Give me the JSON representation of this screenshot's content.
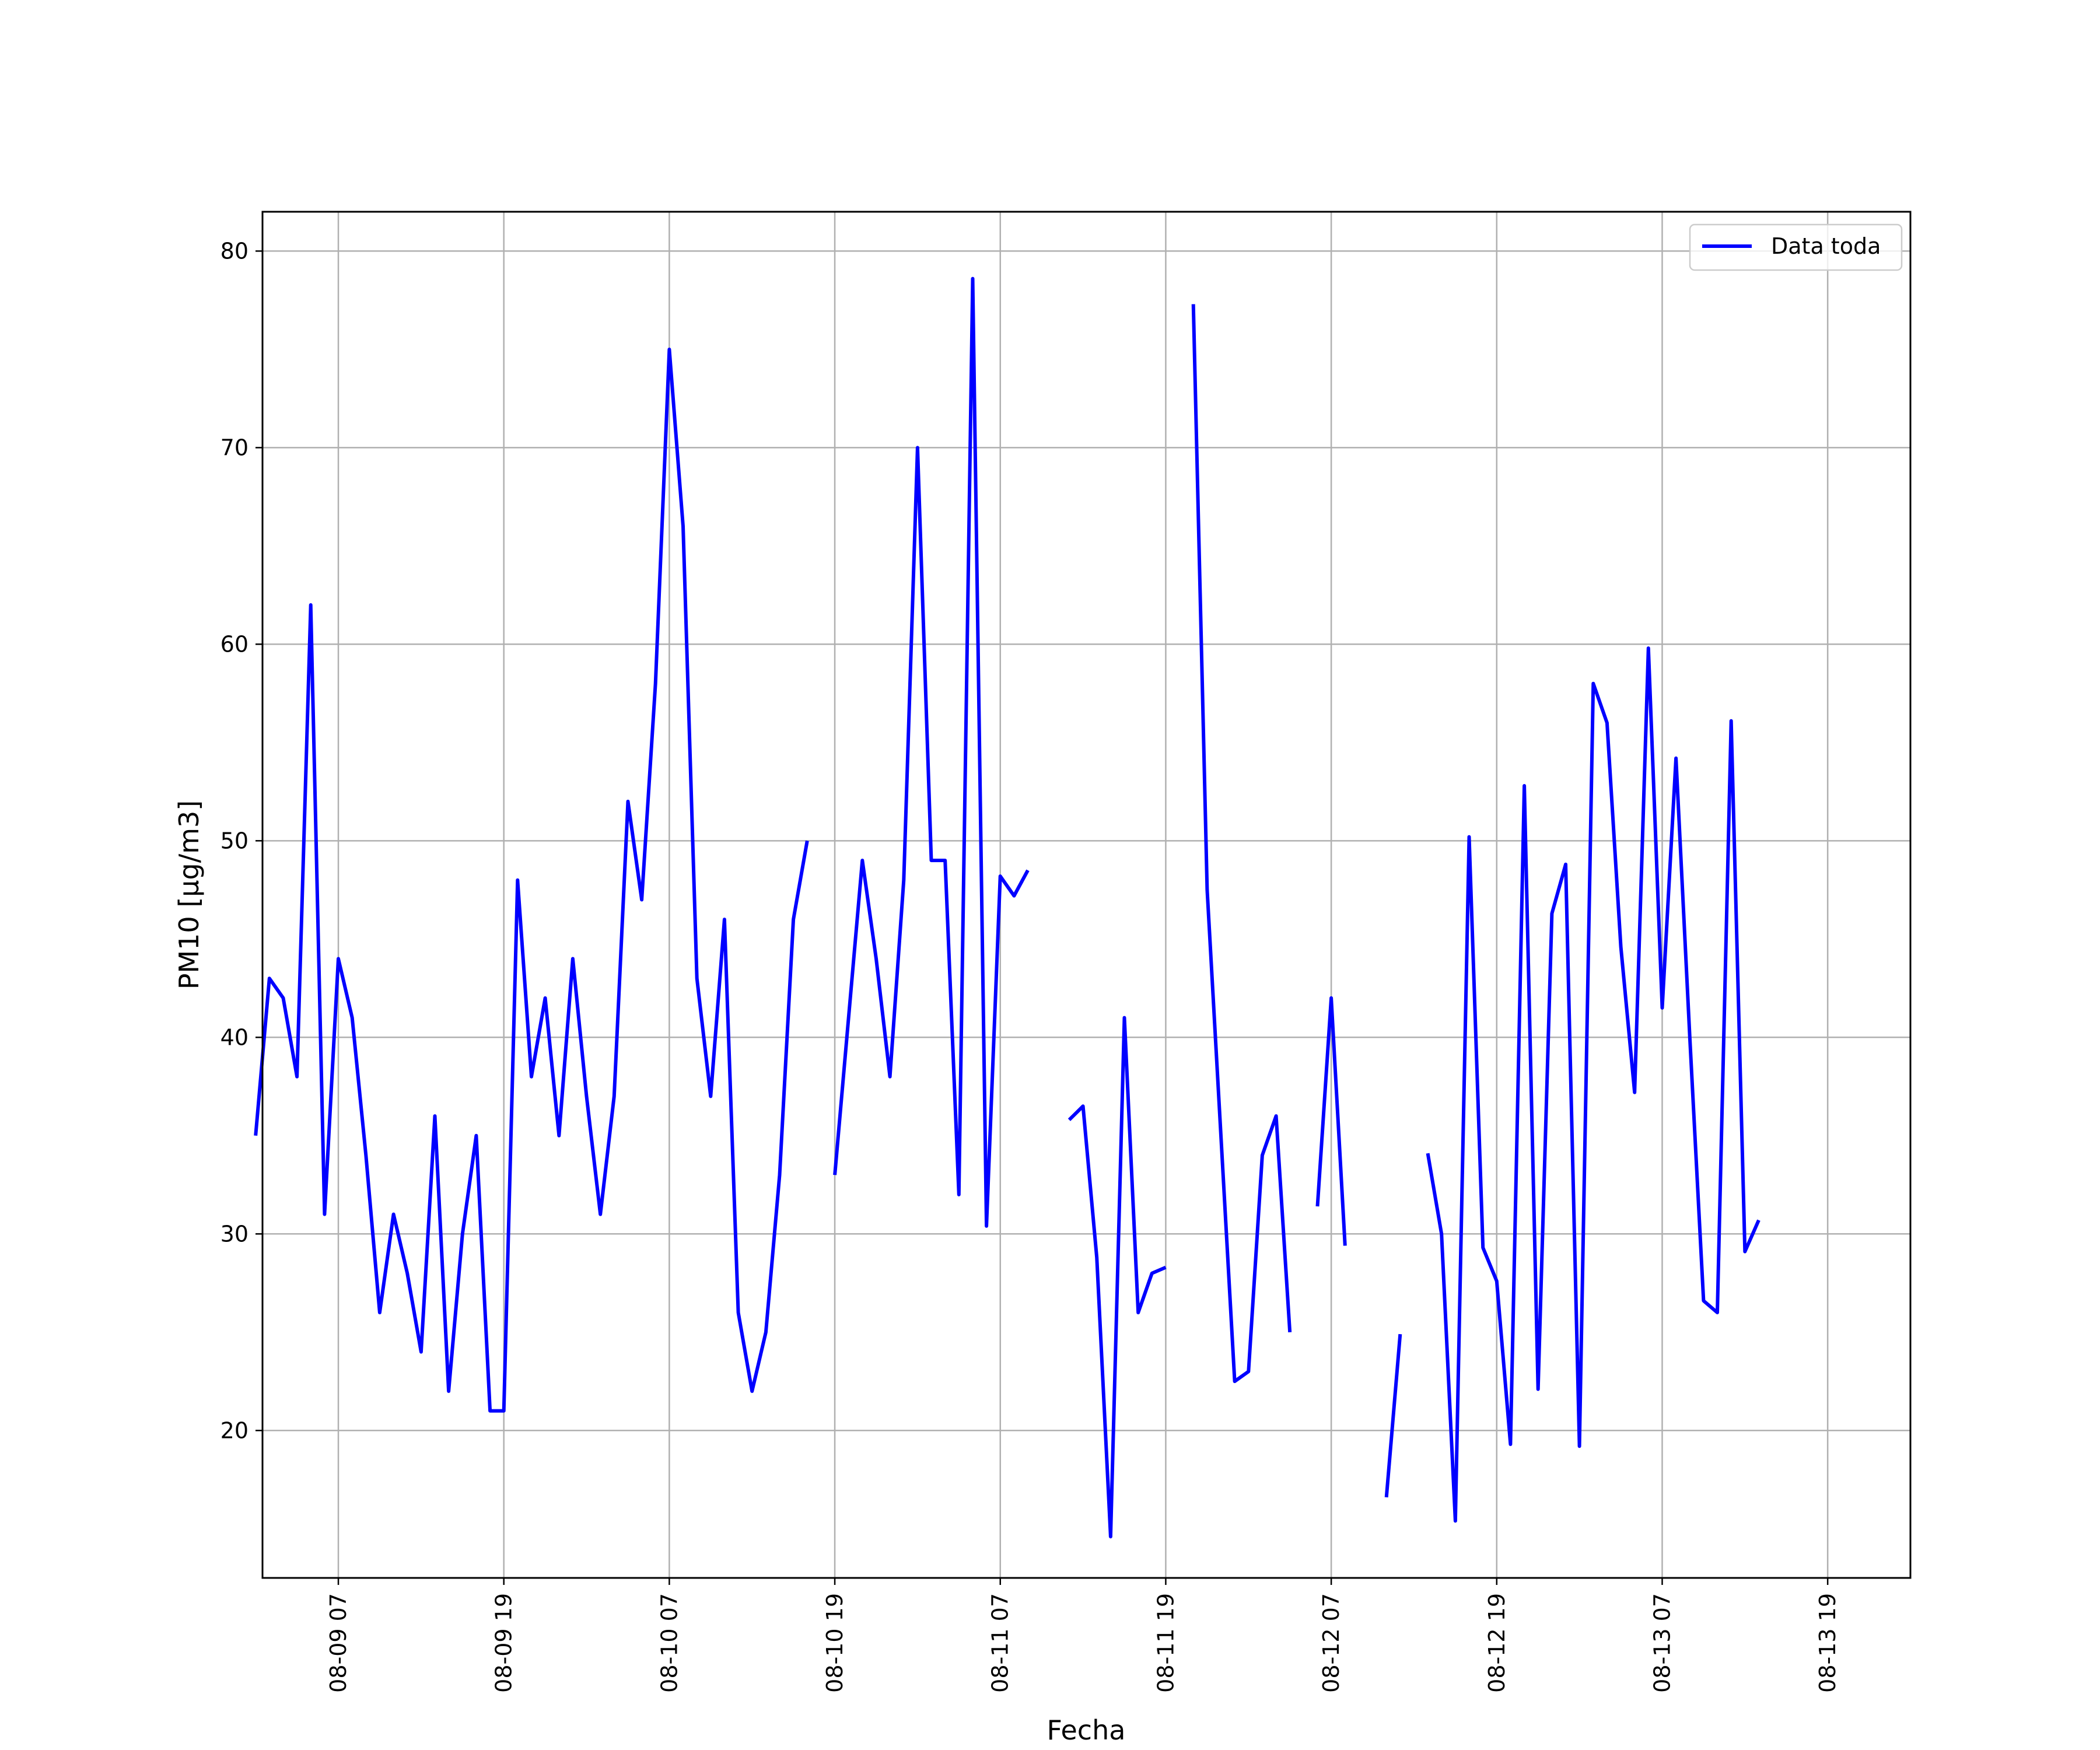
{
  "chart_data": {
    "type": "line",
    "xlabel": "Fecha",
    "ylabel": "PM10 [μg/m3]",
    "yticks": [
      20,
      30,
      40,
      50,
      60,
      70,
      80
    ],
    "xticks": [
      "08-09 07",
      "08-09 19",
      "08-10 07",
      "08-10 19",
      "08-11 07",
      "08-11 19",
      "08-12 07",
      "08-12 19",
      "08-13 07",
      "08-13 19"
    ],
    "ylim": [
      12.5,
      82.0
    ],
    "xlim": [
      "2019-08-09 01:30",
      "2019-08-14 01:00"
    ],
    "grid": true,
    "legend_position": "top-right",
    "series": [
      {
        "name": "Data toda",
        "color": "#0000ff",
        "points": [
          [
            "2019-08-09 01:00",
            35
          ],
          [
            "2019-08-09 02:00",
            43
          ],
          [
            "2019-08-09 03:00",
            42
          ],
          [
            "2019-08-09 04:00",
            38
          ],
          [
            "2019-08-09 05:00",
            62
          ],
          [
            "2019-08-09 06:00",
            31
          ],
          [
            "2019-08-09 07:00",
            44
          ],
          [
            "2019-08-09 08:00",
            41
          ],
          [
            "2019-08-09 09:00",
            34
          ],
          [
            "2019-08-09 10:00",
            26
          ],
          [
            "2019-08-09 11:00",
            31
          ],
          [
            "2019-08-09 12:00",
            28
          ],
          [
            "2019-08-09 13:00",
            24
          ],
          [
            "2019-08-09 14:00",
            36
          ],
          [
            "2019-08-09 15:00",
            22
          ],
          [
            "2019-08-09 16:00",
            30
          ],
          [
            "2019-08-09 17:00",
            35
          ],
          [
            "2019-08-09 18:00",
            21
          ],
          [
            "2019-08-09 19:00",
            21
          ],
          [
            "2019-08-09 20:00",
            48
          ],
          [
            "2019-08-09 21:00",
            38
          ],
          [
            "2019-08-09 22:00",
            42
          ],
          [
            "2019-08-09 23:00",
            35
          ],
          [
            "2019-08-10 00:00",
            44
          ],
          [
            "2019-08-10 01:00",
            37
          ],
          [
            "2019-08-10 02:00",
            31
          ],
          [
            "2019-08-10 03:00",
            37
          ],
          [
            "2019-08-10 04:00",
            52
          ],
          [
            "2019-08-10 05:00",
            47
          ],
          [
            "2019-08-10 06:00",
            58
          ],
          [
            "2019-08-10 07:00",
            75
          ],
          [
            "2019-08-10 08:00",
            66
          ],
          [
            "2019-08-10 09:00",
            43
          ],
          [
            "2019-08-10 10:00",
            37
          ],
          [
            "2019-08-10 11:00",
            46
          ],
          [
            "2019-08-10 12:00",
            26
          ],
          [
            "2019-08-10 13:00",
            22
          ],
          [
            "2019-08-10 14:00",
            25
          ],
          [
            "2019-08-10 15:00",
            33
          ],
          [
            "2019-08-10 16:00",
            46
          ],
          [
            "2019-08-10 17:00",
            50
          ],
          [
            "2019-08-10 18:00",
            null
          ],
          [
            "2019-08-10 19:00",
            33
          ],
          [
            "2019-08-10 20:00",
            41
          ],
          [
            "2019-08-10 21:00",
            49
          ],
          [
            "2019-08-10 22:00",
            44
          ],
          [
            "2019-08-10 23:00",
            38
          ],
          [
            "2019-08-11 00:00",
            48
          ],
          [
            "2019-08-11 01:00",
            70
          ],
          [
            "2019-08-11 02:00",
            49
          ],
          [
            "2019-08-11 03:00",
            49
          ],
          [
            "2019-08-11 04:00",
            32
          ],
          [
            "2019-08-11 05:00",
            78.6
          ],
          [
            "2019-08-11 06:00",
            30.4
          ],
          [
            "2019-08-11 07:00",
            48.2
          ],
          [
            "2019-08-11 08:00",
            47.2
          ],
          [
            "2019-08-11 09:00",
            48.5
          ],
          [
            "2019-08-11 10:00",
            null
          ],
          [
            "2019-08-11 11:00",
            null
          ],
          [
            "2019-08-11 12:00",
            35.8
          ],
          [
            "2019-08-11 13:00",
            36.5
          ],
          [
            "2019-08-11 14:00",
            28.8
          ],
          [
            "2019-08-11 15:00",
            14.6
          ],
          [
            "2019-08-11 16:00",
            41.0
          ],
          [
            "2019-08-11 17:00",
            26.0
          ],
          [
            "2019-08-11 18:00",
            28.0
          ],
          [
            "2019-08-11 19:00",
            28.3
          ],
          [
            "2019-08-11 20:00",
            null
          ],
          [
            "2019-08-11 21:00",
            77.3
          ],
          [
            "2019-08-11 22:00",
            47.5
          ],
          [
            "2019-08-11 23:00",
            35.0
          ],
          [
            "2019-08-12 00:00",
            22.5
          ],
          [
            "2019-08-12 01:00",
            23.0
          ],
          [
            "2019-08-12 02:00",
            34.0
          ],
          [
            "2019-08-12 03:00",
            36.0
          ],
          [
            "2019-08-12 04:00",
            25.0
          ],
          [
            "2019-08-12 05:00",
            null
          ],
          [
            "2019-08-12 06:00",
            31.4
          ],
          [
            "2019-08-12 07:00",
            42.0
          ],
          [
            "2019-08-12 08:00",
            29.4
          ],
          [
            "2019-08-12 09:00",
            null
          ],
          [
            "2019-08-12 10:00",
            null
          ],
          [
            "2019-08-12 11:00",
            16.6
          ],
          [
            "2019-08-12 12:00",
            24.9
          ],
          [
            "2019-08-12 13:00",
            null
          ],
          [
            "2019-08-12 14:00",
            34.1
          ],
          [
            "2019-08-12 15:00",
            30.0
          ],
          [
            "2019-08-12 16:00",
            15.4
          ],
          [
            "2019-08-12 17:00",
            50.2
          ],
          [
            "2019-08-12 18:00",
            29.3
          ],
          [
            "2019-08-12 19:00",
            27.6
          ],
          [
            "2019-08-12 20:00",
            19.3
          ],
          [
            "2019-08-12 21:00",
            52.8
          ],
          [
            "2019-08-12 22:00",
            22.1
          ],
          [
            "2019-08-12 23:00",
            46.3
          ],
          [
            "2019-08-13 00:00",
            48.8
          ],
          [
            "2019-08-13 01:00",
            19.2
          ],
          [
            "2019-08-13 02:00",
            58.0
          ],
          [
            "2019-08-13 03:00",
            56.0
          ],
          [
            "2019-08-13 04:00",
            44.6
          ],
          [
            "2019-08-13 05:00",
            37.2
          ],
          [
            "2019-08-13 06:00",
            59.8
          ],
          [
            "2019-08-13 07:00",
            41.5
          ],
          [
            "2019-08-13 08:00",
            54.2
          ],
          [
            "2019-08-13 09:00",
            40.0
          ],
          [
            "2019-08-13 10:00",
            26.6
          ],
          [
            "2019-08-13 11:00",
            26.0
          ],
          [
            "2019-08-13 12:00",
            56.1
          ],
          [
            "2019-08-13 13:00",
            29.1
          ],
          [
            "2019-08-13 14:00",
            30.7
          ]
        ]
      }
    ]
  }
}
